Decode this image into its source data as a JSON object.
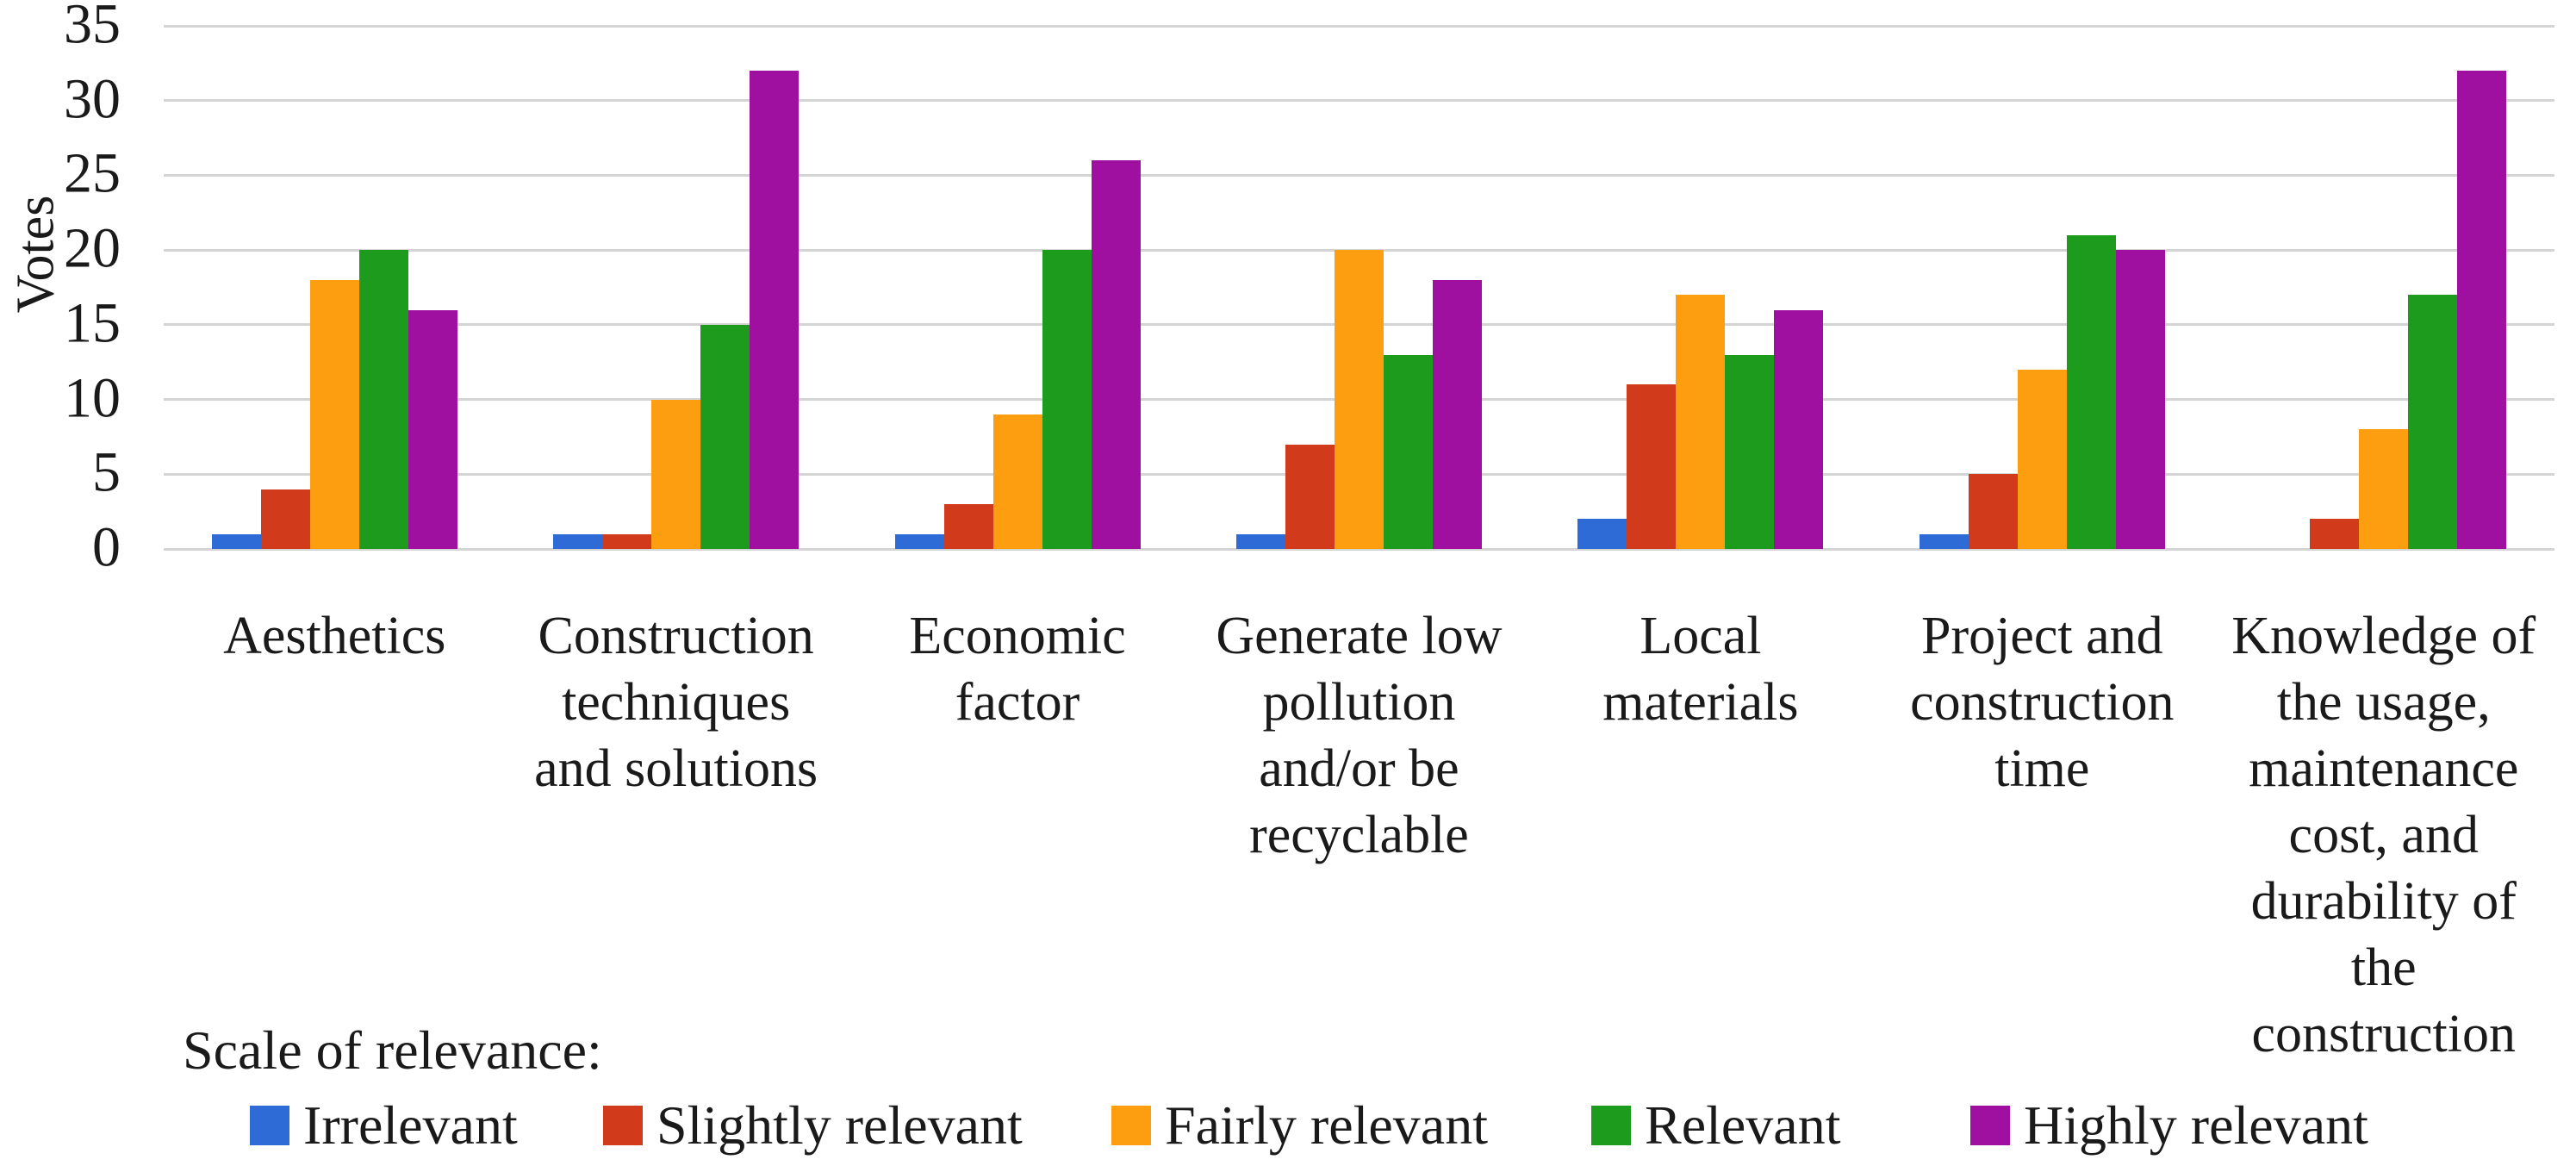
{
  "chart_data": {
    "type": "bar",
    "title": "",
    "ylabel": "Votes",
    "xlabel": "",
    "ylim": [
      0,
      35
    ],
    "yticks": [
      0,
      5,
      10,
      15,
      20,
      25,
      30,
      35
    ],
    "grid": "horizontal",
    "legend_position": "bottom",
    "legend_title": "Scale of relevance:",
    "categories": [
      "Aesthetics",
      "Construction techniques and solutions",
      "Economic factor",
      "Generate low pollution and/or be recyclable",
      "Local materials",
      "Project and construction time",
      "Knowledge of the usage, maintenance cost, and durability of the construction"
    ],
    "category_label_lines": [
      [
        "Aesthetics"
      ],
      [
        "Construction",
        "techniques",
        "and solutions"
      ],
      [
        "Economic",
        "factor"
      ],
      [
        "Generate low",
        "pollution",
        "and/or be",
        "recyclable"
      ],
      [
        "Local",
        "materials"
      ],
      [
        "Project and",
        "construction",
        "time"
      ],
      [
        "Knowledge of",
        "the usage,",
        "maintenance",
        "cost, and",
        "durability of",
        "the",
        "construction"
      ]
    ],
    "series": [
      {
        "name": "Irrelevant",
        "color": "#2F6BD6",
        "values": [
          1,
          1,
          1,
          1,
          2,
          1,
          0
        ]
      },
      {
        "name": "Slightly relevant",
        "color": "#D13A1B",
        "values": [
          4,
          1,
          3,
          7,
          11,
          5,
          2
        ]
      },
      {
        "name": "Fairly relevant",
        "color": "#FC9E0F",
        "values": [
          18,
          10,
          9,
          20,
          17,
          12,
          8
        ]
      },
      {
        "name": "Relevant",
        "color": "#1D9B1D",
        "values": [
          20,
          15,
          20,
          13,
          13,
          21,
          17
        ]
      },
      {
        "name": "Highly relevant",
        "color": "#A010A0",
        "values": [
          16,
          32,
          26,
          18,
          16,
          20,
          32
        ]
      }
    ]
  }
}
